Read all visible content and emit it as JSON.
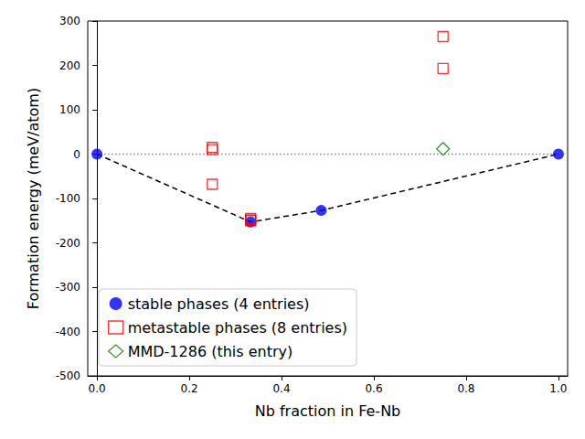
{
  "chart_data": {
    "type": "scatter",
    "xlabel": "Nb fraction in Fe-Nb",
    "ylabel": "Formation energy (meV/atom)",
    "xlim": [
      -0.02,
      1.02
    ],
    "xticks": [
      {
        "value": 0,
        "label": "0.0"
      },
      {
        "value": 0.2,
        "label": "0.2"
      },
      {
        "value": 0.4,
        "label": "0.4"
      },
      {
        "value": 0.6,
        "label": "0.6"
      },
      {
        "value": 0.8,
        "label": "0.8"
      },
      {
        "value": 1,
        "label": "1.0"
      }
    ],
    "ylim": [
      -500,
      300
    ],
    "yticks": [
      -500,
      -400,
      -300,
      -200,
      -100,
      0,
      100,
      200,
      300
    ],
    "grid": false,
    "legend": "lower left",
    "series": [
      {
        "name": "stable phases (4 entries)",
        "color": "#0000ff",
        "marker": "circle",
        "line_style": "dashed",
        "x": [
          0,
          0.333,
          0.486,
          1
        ],
        "values": [
          0,
          -153,
          -127,
          0
        ]
      },
      {
        "name": "metastable phases (8 entries)",
        "color": "#ff0000",
        "marker": "square-open",
        "x": [
          0.25,
          0.25,
          0.25,
          0.333,
          0.333,
          0.333,
          0.75,
          0.75
        ],
        "values": [
          15,
          10,
          -68,
          -145,
          -148,
          -150,
          265,
          193
        ]
      },
      {
        "name": "MMD-1286 (this entry)",
        "color": "#008000",
        "marker": "diamond-open",
        "x": [
          0.75
        ],
        "values": [
          12
        ]
      }
    ],
    "hlines": [
      {
        "y": 0,
        "x": [
          0,
          1
        ],
        "line_style": "dotted",
        "color": "#808080"
      }
    ]
  }
}
